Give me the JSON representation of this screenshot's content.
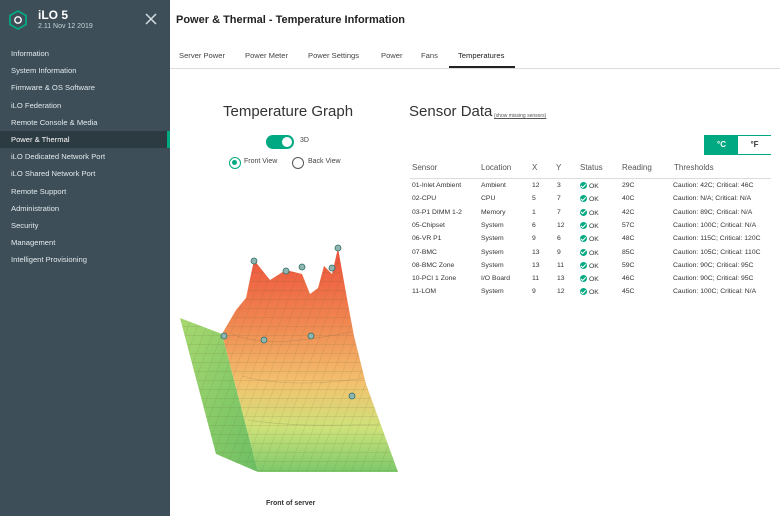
{
  "app": {
    "title": "iLO 5",
    "version": "2.11 Nov 12 2019"
  },
  "sidebar": {
    "items": [
      {
        "label": "Information"
      },
      {
        "label": "System Information"
      },
      {
        "label": "Firmware & OS Software"
      },
      {
        "label": "iLO Federation"
      },
      {
        "label": "Remote Console & Media"
      },
      {
        "label": "Power & Thermal",
        "active": true
      },
      {
        "label": "iLO Dedicated Network Port"
      },
      {
        "label": "iLO Shared Network Port"
      },
      {
        "label": "Remote Support"
      },
      {
        "label": "Administration"
      },
      {
        "label": "Security"
      },
      {
        "label": "Management"
      },
      {
        "label": "Intelligent Provisioning"
      }
    ]
  },
  "header": {
    "title": "Power & Thermal - Temperature Information"
  },
  "tabs": [
    {
      "label": "Server Power"
    },
    {
      "label": "Power Meter"
    },
    {
      "label": "Power Settings"
    },
    {
      "label": "Power"
    },
    {
      "label": "Fans"
    },
    {
      "label": "Temperatures",
      "active": true
    }
  ],
  "graph": {
    "title": "Temperature Graph",
    "toggle_label": "3D",
    "toggle_on": true,
    "front_view_label": "Front View",
    "back_view_label": "Back View",
    "selected_view": "front",
    "caption": "Front of server"
  },
  "sensors": {
    "title": "Sensor Data",
    "show_missing_link": "(show missing sensors)",
    "unit_celsius": "°C",
    "unit_fahrenheit": "°F",
    "selected_unit": "C",
    "columns": {
      "sensor": "Sensor",
      "location": "Location",
      "x": "X",
      "y": "Y",
      "status": "Status",
      "reading": "Reading",
      "thresholds": "Thresholds"
    },
    "rows": [
      {
        "sensor": "01-Inlet Ambient",
        "location": "Ambient",
        "x": "12",
        "y": "3",
        "status": "OK",
        "reading": "29C",
        "thresholds": "Caution: 42C; Critical: 46C"
      },
      {
        "sensor": "02-CPU",
        "location": "CPU",
        "x": "5",
        "y": "7",
        "status": "OK",
        "reading": "40C",
        "thresholds": "Caution: N/A; Critical: N/A"
      },
      {
        "sensor": "03-P1 DIMM 1-2",
        "location": "Memory",
        "x": "1",
        "y": "7",
        "status": "OK",
        "reading": "42C",
        "thresholds": "Caution: 89C; Critical: N/A"
      },
      {
        "sensor": "05-Chipset",
        "location": "System",
        "x": "6",
        "y": "12",
        "status": "OK",
        "reading": "57C",
        "thresholds": "Caution: 100C; Critical: N/A"
      },
      {
        "sensor": "06-VR P1",
        "location": "System",
        "x": "9",
        "y": "6",
        "status": "OK",
        "reading": "48C",
        "thresholds": "Caution: 115C; Critical: 120C"
      },
      {
        "sensor": "07-BMC",
        "location": "System",
        "x": "13",
        "y": "9",
        "status": "OK",
        "reading": "85C",
        "thresholds": "Caution: 105C; Critical: 110C"
      },
      {
        "sensor": "08-BMC Zone",
        "location": "System",
        "x": "13",
        "y": "11",
        "status": "OK",
        "reading": "59C",
        "thresholds": "Caution: 90C; Critical: 95C"
      },
      {
        "sensor": "10-PCI 1 Zone",
        "location": "I/O Board",
        "x": "11",
        "y": "13",
        "status": "OK",
        "reading": "46C",
        "thresholds": "Caution: 90C; Critical: 95C"
      },
      {
        "sensor": "11-LOM",
        "location": "System",
        "x": "9",
        "y": "12",
        "status": "OK",
        "reading": "45C",
        "thresholds": "Caution: 100C; Critical: N/A"
      }
    ]
  },
  "colors": {
    "accent": "#01a982",
    "sidebar_bg": "#3d4e58",
    "surface_hot": "#ee5b3a",
    "surface_cool": "#7cc96a"
  },
  "icons": {
    "logo": "hpe-ilo-logo-icon",
    "close": "close-icon",
    "status_ok": "check-circle-icon",
    "sensor_marker": "sensor-marker-icon"
  }
}
